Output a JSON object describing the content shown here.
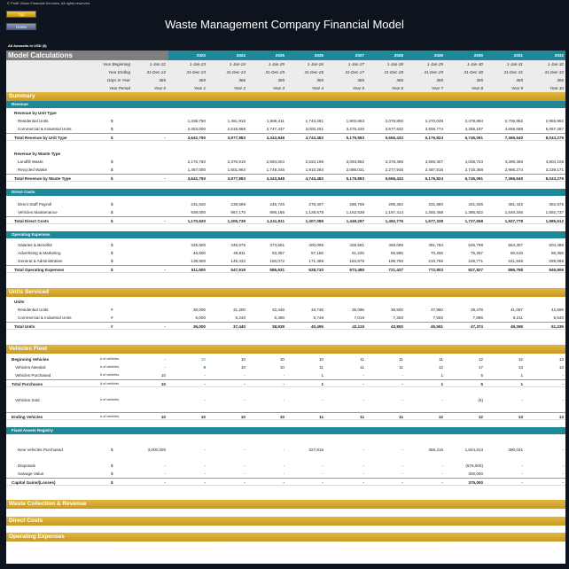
{
  "header": {
    "copyright": "© Profit Vision Financial Services. All rights reserved.",
    "top_button": "Top",
    "home_button": "Home",
    "title": "Waste Management Company Financial Model",
    "amounts_note": "All Amounts in  USD ($)"
  },
  "model": {
    "title": "Model Calculations",
    "years": [
      "",
      "2023",
      "2024",
      "2025",
      "2026",
      "2027",
      "2028",
      "2029",
      "2030",
      "2031",
      "2032"
    ],
    "info_rows": [
      {
        "label": "Year Beginning",
        "values": [
          "1-Jan-22",
          "1-Jan-23",
          "1-Jan-24",
          "1-Jan-25",
          "1-Jan-26",
          "1-Jan-27",
          "1-Jan-28",
          "1-Jan-29",
          "1-Jan-30",
          "1-Jan-31",
          "1-Jan-32"
        ]
      },
      {
        "label": "Year Ending",
        "values": [
          "31-Dec-22",
          "31-Dec-23",
          "31-Dec-24",
          "31-Dec-25",
          "31-Dec-26",
          "31-Dec-27",
          "31-Dec-28",
          "31-Dec-29",
          "31-Dec-30",
          "31-Dec-31",
          "31-Dec-32"
        ]
      },
      {
        "label": "Days in Year",
        "values": [
          "365",
          "365",
          "366",
          "365",
          "365",
          "365",
          "366",
          "365",
          "365",
          "365",
          "366"
        ]
      },
      {
        "label": "Year Period",
        "values": [
          "Year 0",
          "Year 1",
          "Year 2",
          "Year 3",
          "Year 4",
          "Year 5",
          "Year 6",
          "Year 7",
          "Year 8",
          "Year 9",
          "Year 10"
        ]
      }
    ]
  },
  "rows": [
    {
      "kind": "gold",
      "label": "Summary"
    },
    {
      "kind": "teal",
      "label": "Revenue"
    },
    {
      "kind": "sub",
      "label": "Revenue by Unit Type"
    },
    {
      "kind": "item",
      "label": "Residential Units",
      "unit": "$",
      "values": [
        "",
        "1,338,750",
        "1,461,915",
        "1,596,411",
        "1,743,281",
        "1,903,663",
        "2,078,800",
        "2,270,049",
        "2,478,894",
        "2,706,952",
        "2,955,992"
      ]
    },
    {
      "kind": "item",
      "label": "Commercial & Industrial Units",
      "unit": "$",
      "values": [
        "",
        "2,304,000",
        "2,515,968",
        "2,747,437",
        "3,000,201",
        "3,276,220",
        "3,577,632",
        "3,906,774",
        "4,266,197",
        "4,658,688",
        "5,087,287"
      ]
    },
    {
      "kind": "total",
      "label": "Total Revenue by Unit Type",
      "unit": "$",
      "values": [
        "-",
        "3,642,750",
        "3,977,883",
        "4,343,848",
        "4,743,482",
        "5,179,883",
        "5,656,432",
        "6,176,824",
        "6,745,091",
        "7,365,640",
        "8,043,279"
      ]
    },
    {
      "kind": "sub",
      "label": "Revenue by Waste Type"
    },
    {
      "kind": "item",
      "label": "Landfill Waste",
      "unit": "$",
      "values": [
        "",
        "2,175,750",
        "2,375,919",
        "2,594,504",
        "2,833,198",
        "3,093,852",
        "3,378,486",
        "3,689,307",
        "4,028,723",
        "4,399,366",
        "4,804,108"
      ]
    },
    {
      "kind": "item",
      "label": "Recycled Waste",
      "unit": "$",
      "values": [
        "",
        "1,467,000",
        "1,601,964",
        "1,749,345",
        "1,910,284",
        "2,086,031",
        "2,277,945",
        "2,487,516",
        "2,716,368",
        "2,966,274",
        "3,239,171"
      ]
    },
    {
      "kind": "total",
      "label": "Total Revenue by Waste Type",
      "unit": "$",
      "values": [
        "-",
        "3,642,750",
        "3,977,883",
        "4,343,848",
        "4,743,482",
        "5,179,883",
        "5,656,432",
        "6,176,824",
        "6,745,091",
        "7,365,640",
        "8,043,279"
      ]
    },
    {
      "kind": "teal",
      "label": "Direct Costs"
    },
    {
      "kind": "item",
      "label": "Direct Staff Payroll",
      "unit": "$",
      "values": [
        "",
        "231,620",
        "238,569",
        "245,726",
        "278,407",
        "286,759",
        "295,362",
        "331,880",
        "341,836",
        "381,432",
        "392,875"
      ]
    },
    {
      "kind": "item",
      "label": "Vehicles Maintenance",
      "unit": "$",
      "values": [
        "",
        "939,000",
        "967,170",
        "996,185",
        "1,128,678",
        "1,162,538",
        "1,197,414",
        "1,345,458",
        "1,385,822",
        "1,546,346",
        "1,592,737"
      ]
    },
    {
      "kind": "total",
      "label": "Total Direct Costs",
      "unit": "$",
      "values": [
        "-",
        "1,170,620",
        "1,205,739",
        "1,241,911",
        "1,407,085",
        "1,449,297",
        "1,492,776",
        "1,677,338",
        "1,727,658",
        "1,927,778",
        "1,985,612"
      ]
    },
    {
      "kind": "teal",
      "label": "Operating Expenses"
    },
    {
      "kind": "item",
      "label": "Salaries & Benefits",
      "unit": "$",
      "values": [
        "",
        "325,500",
        "348,676",
        "373,501",
        "400,095",
        "428,581",
        "459,096",
        "491,784",
        "526,799",
        "564,307",
        "604,486"
      ]
    },
    {
      "kind": "item",
      "label": "Advertising & Marketing",
      "unit": "$",
      "values": [
        "",
        "46,500",
        "49,811",
        "53,357",
        "57,156",
        "61,226",
        "65,585",
        "70,255",
        "75,257",
        "80,615",
        "86,355"
      ]
    },
    {
      "kind": "item",
      "label": "General & Administrative",
      "unit": "$",
      "values": [
        "",
        "139,500",
        "149,432",
        "160,072",
        "171,469",
        "183,678",
        "196,756",
        "210,765",
        "225,771",
        "241,846",
        "259,065"
      ]
    },
    {
      "kind": "total",
      "label": "Total Operating Expenses",
      "unit": "$",
      "values": [
        "-",
        "511,500",
        "547,919",
        "586,931",
        "628,720",
        "673,485",
        "721,437",
        "772,803",
        "827,827",
        "886,768",
        "949,906"
      ]
    },
    {
      "kind": "gold",
      "label": "Units Serviced"
    },
    {
      "kind": "sub",
      "label": "Units"
    },
    {
      "kind": "item",
      "label": "Residential Units",
      "unit": "#",
      "values": [
        "",
        "30,000",
        "31,200",
        "32,448",
        "33,746",
        "35,096",
        "36,500",
        "37,960",
        "39,478",
        "41,057",
        "42,699"
      ]
    },
    {
      "kind": "item",
      "label": "Commercial & Industrial Units",
      "unit": "#",
      "values": [
        "",
        "6,000",
        "6,240",
        "6,490",
        "6,749",
        "7,019",
        "7,300",
        "7,592",
        "7,896",
        "8,211",
        "8,540"
      ]
    },
    {
      "kind": "total",
      "label": "Total Units",
      "unit": "#",
      "values": [
        "-",
        "36,000",
        "37,440",
        "38,938",
        "40,495",
        "42,115",
        "43,800",
        "45,551",
        "47,374",
        "49,268",
        "51,239"
      ]
    },
    {
      "kind": "gold",
      "label": "Vehicles Fleet"
    },
    {
      "kind": "vbold",
      "label": "Beginning Vehicles",
      "unit": "# of vehicles",
      "values": [
        "-",
        "10",
        "10",
        "10",
        "10",
        "11",
        "11",
        "11",
        "12",
        "12",
        "13"
      ]
    },
    {
      "kind": "vitem",
      "label": "Vehicles Needed",
      "unit": "# of vehicles",
      "values": [
        "-",
        "9",
        "10",
        "10",
        "11",
        "11",
        "11",
        "12",
        "17",
        "13",
        "13"
      ]
    },
    {
      "kind": "vitem",
      "label": "Vehicles Purchased",
      "unit": "# of vehicles",
      "values": [
        "10",
        "-",
        "-",
        "-",
        "1",
        "-",
        "-",
        "1",
        "5",
        "1",
        "-"
      ]
    },
    {
      "kind": "vtotal",
      "label": "Total Purchases",
      "unit": "# of vehicles",
      "values": [
        "10",
        "-",
        "-",
        "-",
        "1",
        "-",
        "-",
        "1",
        "5",
        "1",
        "-"
      ]
    },
    {
      "kind": "vitem",
      "label": "Vehicles Sold",
      "unit": "# of vehicles",
      "values": [
        "",
        "-",
        "-",
        "-",
        "-",
        "-",
        "-",
        "-",
        "(5)",
        "-",
        "-"
      ]
    },
    {
      "kind": "vtotal",
      "label": "Ending Vehicles",
      "unit": "# of vehicles",
      "values": [
        "10",
        "10",
        "10",
        "10",
        "11",
        "11",
        "11",
        "12",
        "12",
        "13",
        "13"
      ]
    },
    {
      "kind": "teal",
      "label": "Fixed Assets Registry"
    },
    {
      "kind": "item",
      "label": "New Vehicles Purchased",
      "unit": "$",
      "values": [
        "3,000,000",
        "-",
        "-",
        "-",
        "327,818",
        "-",
        "-",
        "356,216",
        "1,844,813",
        "380,031",
        "-"
      ]
    },
    {
      "kind": "item",
      "label": "Disposals",
      "unit": "$",
      "values": [
        "-",
        "-",
        "-",
        "-",
        "-",
        "-",
        "-",
        "-",
        "(675,000)",
        "-",
        "-"
      ]
    },
    {
      "kind": "item",
      "label": "Salvage Value",
      "unit": "$",
      "values": [
        "-",
        "-",
        "-",
        "-",
        "-",
        "-",
        "-",
        "-",
        "300,000",
        "-",
        "-"
      ]
    },
    {
      "kind": "vtotal",
      "label": "Capital Gains/(Losses)",
      "unit": "$",
      "values": [
        "-",
        "-",
        "-",
        "-",
        "-",
        "-",
        "-",
        "-",
        "375,000",
        "-",
        "-"
      ]
    },
    {
      "kind": "gold",
      "label": "Waste Collection & Revenue"
    },
    {
      "kind": "gold",
      "label": "Direct Costs"
    },
    {
      "kind": "gold",
      "label": "Operating Expenses"
    }
  ],
  "colors": {
    "gold": "#d4a62e",
    "teal": "#1f8797",
    "gray": "#7f7f7f",
    "highlight": "#2c9a5a"
  }
}
